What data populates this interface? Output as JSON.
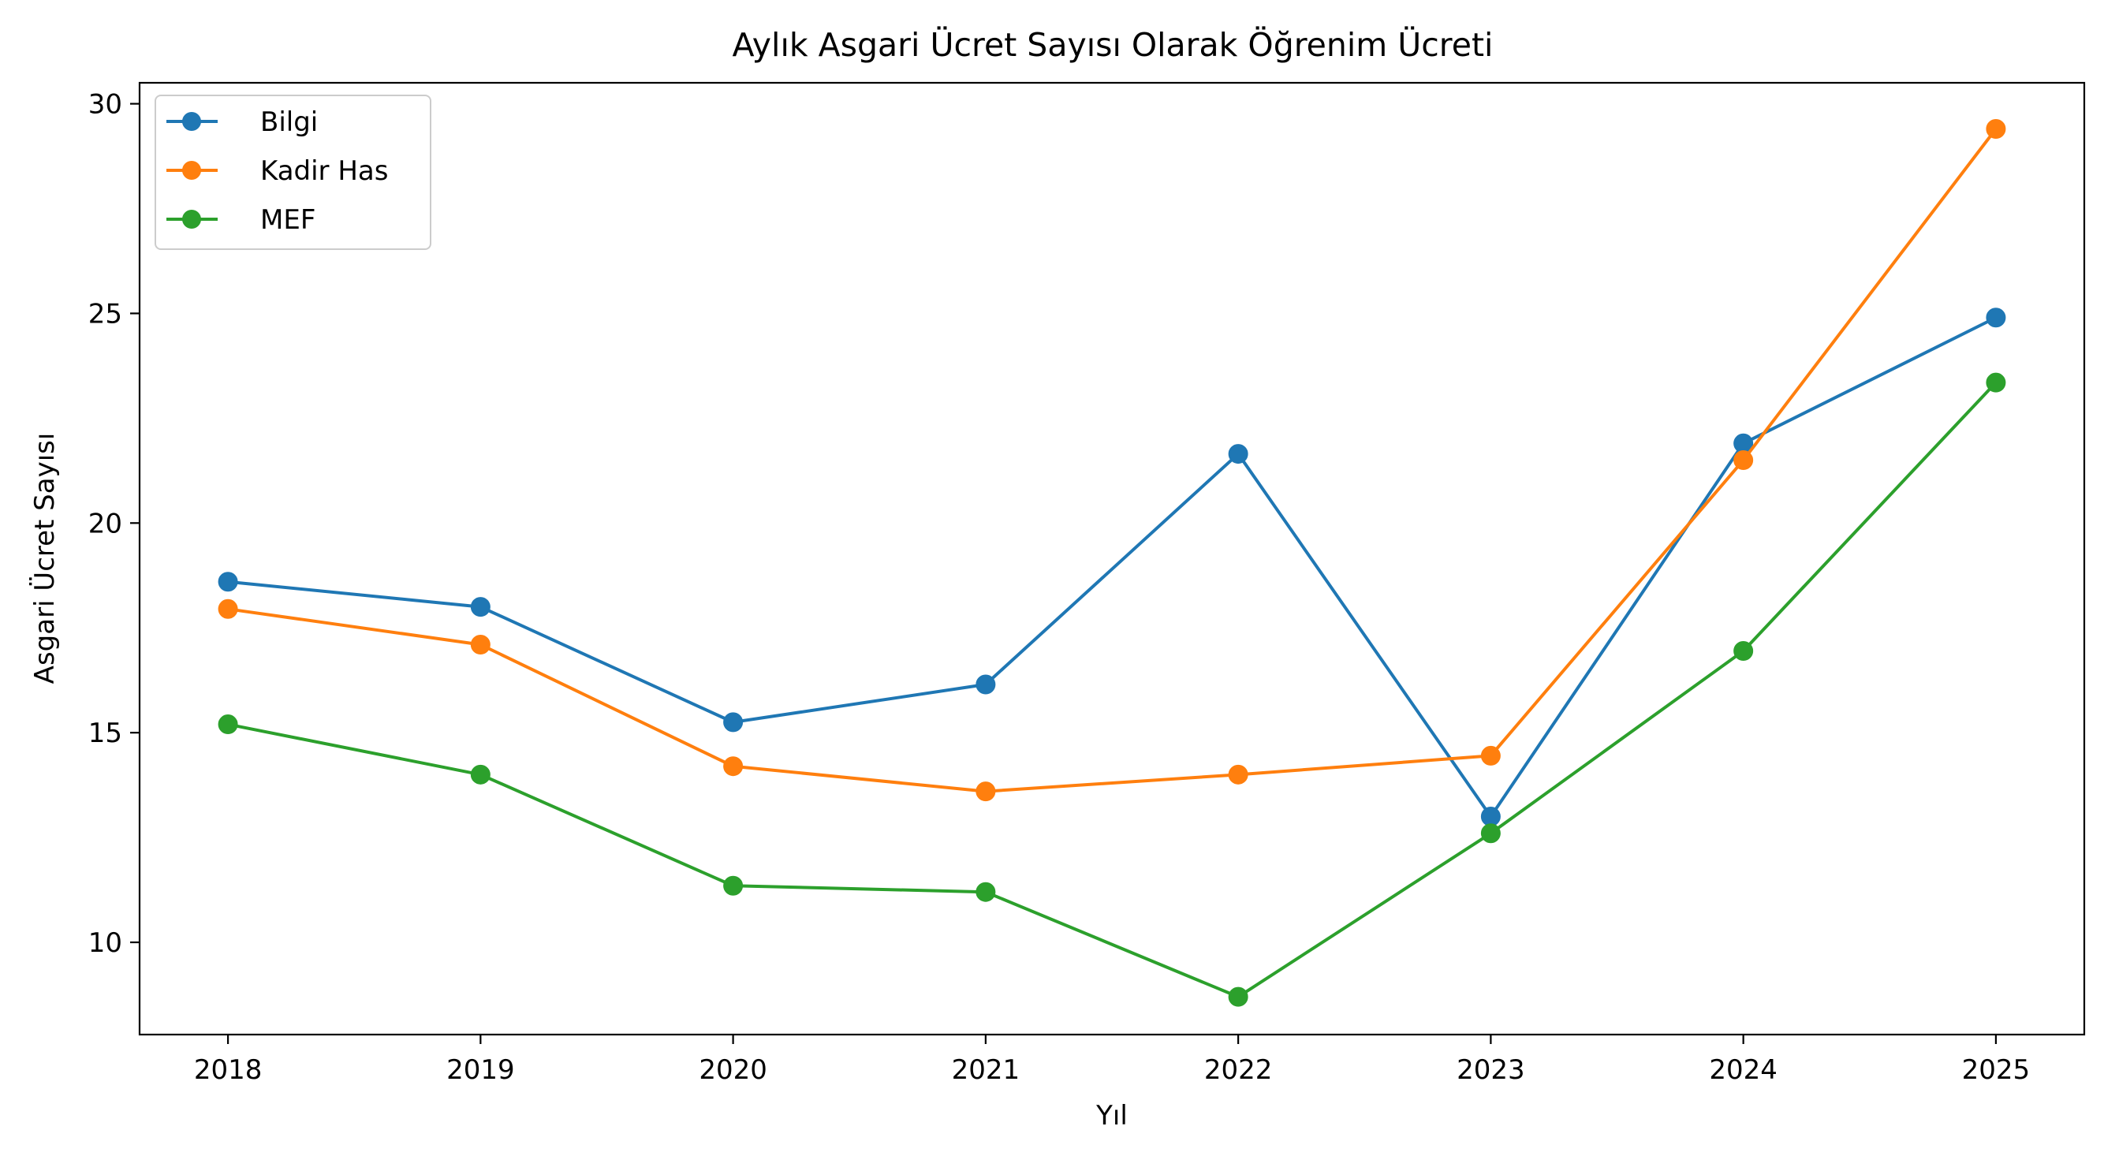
{
  "chart_data": {
    "type": "line",
    "title": "Aylık Asgari Ücret Sayısı Olarak Öğrenim Ücreti",
    "xlabel": "Yıl",
    "ylabel": "Asgari Ücret Sayısı",
    "x": [
      2018,
      2019,
      2020,
      2021,
      2022,
      2023,
      2024,
      2025
    ],
    "xlim": [
      2017.65,
      2025.35
    ],
    "ylim": [
      7.8,
      30.5
    ],
    "yticks": [
      10,
      15,
      20,
      25,
      30
    ],
    "grid": false,
    "legend_position": "top-left",
    "series": [
      {
        "name": "Bilgi",
        "color": "#1f77b4",
        "marker": "circle",
        "values": [
          18.6,
          18.0,
          15.25,
          16.15,
          21.65,
          13.0,
          21.9,
          24.9
        ]
      },
      {
        "name": "Kadir Has",
        "color": "#ff7f0e",
        "marker": "circle",
        "values": [
          17.95,
          17.1,
          14.2,
          13.6,
          14.0,
          14.45,
          21.5,
          29.4
        ]
      },
      {
        "name": "MEF",
        "color": "#2ca02c",
        "marker": "circle",
        "values": [
          15.2,
          14.0,
          11.35,
          11.2,
          8.7,
          12.6,
          16.95,
          23.35
        ]
      }
    ]
  }
}
